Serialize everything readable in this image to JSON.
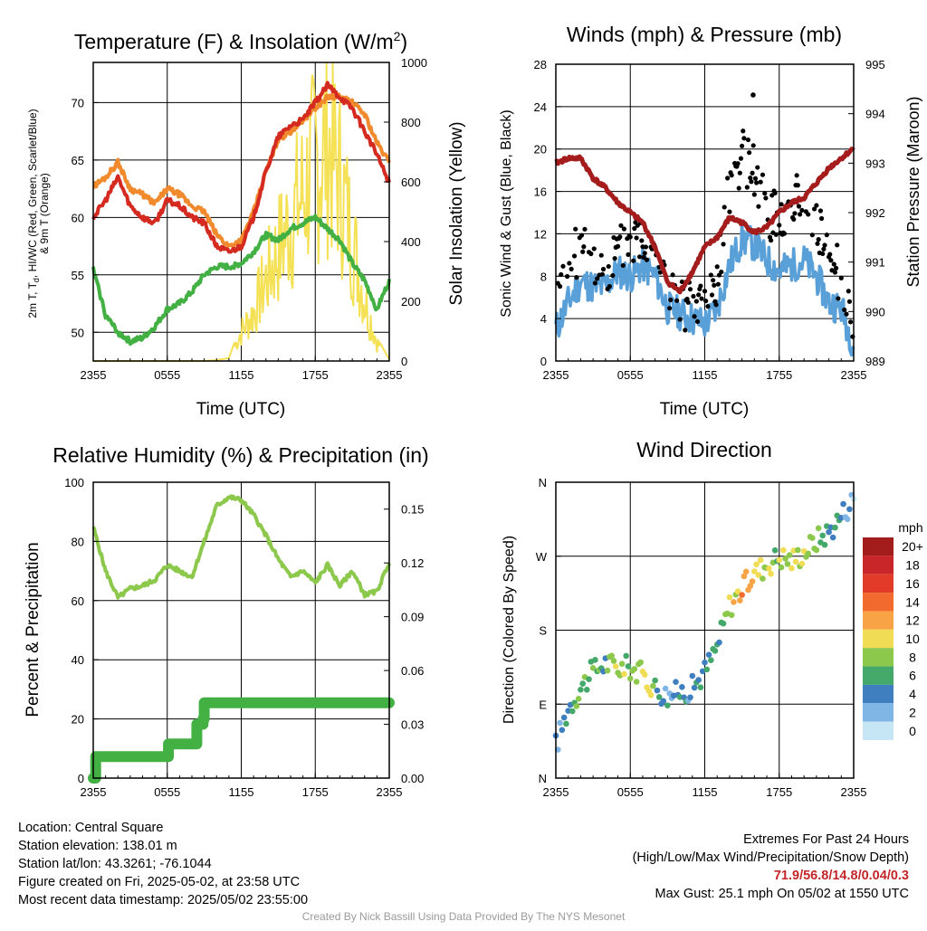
{
  "colors": {
    "temp_red": "#d42a20",
    "dewpoint_green": "#43b043",
    "index_scarlet": "#e8343a",
    "temp9m_orange": "#f08a2c",
    "insolation_yellow": "#f5e156",
    "wind_blue": "#5aa0d8",
    "gust_black": "#000000",
    "pressure_maroon": "#a41c1c",
    "rh_lightgreen": "#8cc84b",
    "precip_green": "#43b043",
    "grid": "#000000",
    "extremes_text": "#c3262a",
    "credit_text": "#9a9a9a"
  },
  "chart_data": [
    {
      "id": "temperature",
      "type": "line",
      "title": "Temperature (F) & Insolation (W/m",
      "title_sup": "2",
      "title_end": ")",
      "ylabel_line1": "2m T, T",
      "ylabel_sub": "d",
      "ylabel_line1_end": ", HI/WC (Red, Green, Scarlet/Blue)",
      "ylabel_line2": "& 9m T (Orange)",
      "y2label": "Solar Insolation (Yellow)",
      "xlabel": "Time (UTC)",
      "x_ticks": [
        "2355",
        "0555",
        "1155",
        "1755",
        "2355"
      ],
      "ylim": [
        47.5,
        73.5
      ],
      "y_ticks": [
        50,
        55,
        60,
        65,
        70
      ],
      "y2lim": [
        0,
        1000
      ],
      "y2_ticks": [
        0,
        200,
        400,
        600,
        800,
        1000
      ],
      "hours": [
        0,
        1,
        2,
        3,
        4,
        5,
        6,
        7,
        8,
        9,
        10,
        11,
        12,
        13,
        14,
        15,
        16,
        17,
        18,
        19,
        20,
        21,
        22,
        23,
        24
      ],
      "series": [
        {
          "key": "t9m",
          "values": [
            62.7,
            63.5,
            64.8,
            62.5,
            62.0,
            61.2,
            62.5,
            62.0,
            61.0,
            60.5,
            58.5,
            57.5,
            58.0,
            60.5,
            64.0,
            66.8,
            67.5,
            68.5,
            69.5,
            70.5,
            70.5,
            70.0,
            69.0,
            66.5,
            64.8
          ]
        },
        {
          "key": "t2m",
          "values": [
            60.0,
            61.5,
            63.5,
            61.0,
            60.0,
            59.5,
            61.5,
            61.0,
            60.0,
            59.5,
            57.5,
            57.0,
            57.5,
            60.0,
            64.0,
            67.0,
            68.0,
            68.5,
            70.0,
            71.5,
            70.5,
            69.5,
            67.5,
            65.5,
            63.0
          ]
        },
        {
          "key": "td",
          "values": [
            55.5,
            51.5,
            50.0,
            49.2,
            49.5,
            50.5,
            52.0,
            52.5,
            53.5,
            55.0,
            55.7,
            55.7,
            56.0,
            57.0,
            58.5,
            58.0,
            59.0,
            59.5,
            60.0,
            59.0,
            58.0,
            56.0,
            54.5,
            52.0,
            54.5
          ]
        },
        {
          "key": "insolation",
          "values": [
            0,
            0,
            0,
            0,
            0,
            0,
            0,
            0,
            0,
            0,
            3,
            10,
            125,
            210,
            350,
            480,
            600,
            720,
            850,
            950,
            780,
            520,
            270,
            80,
            5
          ]
        }
      ]
    },
    {
      "id": "winds",
      "type": "line",
      "title": "Winds (mph) & Pressure (mb)",
      "ylabel": "Sonic Wind & Gust (Blue, Black)",
      "y2label": "Station Pressure (Maroon)",
      "xlabel": "Time (UTC)",
      "x_ticks": [
        "2355",
        "0555",
        "1155",
        "1755",
        "2355"
      ],
      "ylim": [
        0,
        28
      ],
      "y_ticks": [
        0,
        4,
        8,
        12,
        16,
        20,
        24,
        28
      ],
      "y2lim": [
        989,
        995
      ],
      "y2_ticks": [
        989,
        990,
        991,
        992,
        993,
        994,
        995
      ],
      "hours": [
        0,
        1,
        2,
        3,
        4,
        5,
        6,
        7,
        8,
        9,
        10,
        11,
        12,
        13,
        14,
        15,
        16,
        17,
        18,
        19,
        20,
        21,
        22,
        23,
        24
      ],
      "series": [
        {
          "key": "wind",
          "values": [
            3.0,
            5.5,
            7.5,
            7.0,
            7.0,
            8.5,
            8.0,
            9.0,
            8.0,
            5.0,
            4.5,
            4.0,
            3.5,
            5.0,
            9.0,
            11.5,
            11.0,
            9.5,
            8.5,
            9.0,
            9.5,
            8.0,
            5.5,
            5.0,
            1.5
          ]
        },
        {
          "key": "gust",
          "values": [
            6.5,
            9.0,
            11.0,
            9.5,
            8.5,
            10.5,
            11.5,
            12.0,
            11.0,
            7.0,
            5.5,
            5.0,
            6.0,
            7.5,
            16.5,
            19.5,
            18.0,
            14.0,
            13.5,
            15.0,
            16.0,
            13.5,
            9.5,
            8.0,
            2.5
          ]
        },
        {
          "key": "pressure",
          "values": [
            993.0,
            993.1,
            993.1,
            992.7,
            992.5,
            992.2,
            992.0,
            991.8,
            991.3,
            990.6,
            990.4,
            990.8,
            991.3,
            991.5,
            991.9,
            991.8,
            991.6,
            991.7,
            992.0,
            992.2,
            992.3,
            992.6,
            992.9,
            993.1,
            993.3
          ]
        }
      ],
      "max_gust_point": {
        "hour": 15.9,
        "value": 25.1
      }
    },
    {
      "id": "humidity",
      "type": "line",
      "title": "Relative Humidity (%) & Precipitation (in)",
      "ylabel": "Percent & Precipitation",
      "x_ticks": [
        "2355",
        "0555",
        "1155",
        "1755",
        "2355"
      ],
      "ylim": [
        0,
        100
      ],
      "y_ticks": [
        0,
        20,
        40,
        60,
        80,
        100
      ],
      "y2lim": [
        0,
        0.165
      ],
      "y2_ticks": [
        "0.00",
        "0.03",
        "0.06",
        "0.09",
        "0.12",
        "0.15"
      ],
      "hours": [
        0,
        1,
        2,
        3,
        4,
        5,
        6,
        7,
        8,
        9,
        10,
        11,
        12,
        13,
        14,
        15,
        16,
        17,
        18,
        19,
        20,
        21,
        22,
        23,
        24
      ],
      "series": [
        {
          "key": "rh",
          "values": [
            85,
            70,
            61,
            64,
            65,
            67,
            72,
            70,
            68,
            80,
            92,
            95,
            94,
            89,
            82,
            74,
            68,
            70,
            66,
            72,
            65,
            70,
            62,
            63,
            73
          ]
        }
      ],
      "precip_steps": [
        [
          0,
          0.0
        ],
        [
          0.2,
          0.012
        ],
        [
          6.0,
          0.012
        ],
        [
          6.1,
          0.019
        ],
        [
          8.3,
          0.019
        ],
        [
          8.4,
          0.03
        ],
        [
          8.9,
          0.033
        ],
        [
          9.0,
          0.042
        ],
        [
          24,
          0.042
        ]
      ]
    },
    {
      "id": "direction",
      "type": "scatter",
      "title": "Wind Direction",
      "ylabel": "Direction (Colored By Speed)",
      "x_ticks": [
        "2355",
        "0555",
        "1155",
        "1755",
        "2355"
      ],
      "y_ticks": [
        "N",
        "E",
        "S",
        "W",
        "N"
      ],
      "ylim": [
        0,
        360
      ],
      "colorbar_unit": "mph",
      "colorbar_labels": [
        "20+",
        "18",
        "16",
        "14",
        "12",
        "10",
        "8",
        "6",
        "4",
        "2",
        "0"
      ],
      "colorbar_colors": [
        "#a31c1c",
        "#c9262a",
        "#e23b2a",
        "#f26a2d",
        "#f8a446",
        "#f0dc55",
        "#8cc84b",
        "#43a869",
        "#3f7fbf",
        "#7fb6e5",
        "#c6e6f5"
      ],
      "hours": [
        0,
        1,
        2,
        3,
        4,
        5,
        6,
        7,
        8,
        9,
        10,
        11,
        12,
        13,
        14,
        15,
        16,
        17,
        18,
        19,
        20,
        21,
        22,
        23,
        24
      ],
      "directions": [
        40,
        85,
        110,
        130,
        140,
        135,
        135,
        125,
        110,
        100,
        105,
        110,
        130,
        160,
        210,
        230,
        250,
        260,
        270,
        265,
        275,
        290,
        300,
        320,
        340
      ],
      "speeds": [
        3,
        5,
        7,
        7,
        6,
        8,
        7,
        9,
        7,
        4,
        4,
        4,
        4,
        5,
        9,
        12,
        11,
        9,
        8,
        9,
        9,
        8,
        5,
        5,
        2
      ]
    }
  ],
  "info": {
    "location": "Location: Central Square",
    "elevation": "Station elevation: 138.01 m",
    "latlon": "Station lat/lon: 43.3261; -76.1044",
    "created": "Figure created on Fri, 2025-05-02, at 23:58 UTC",
    "recent": "Most recent data timestamp: 2025/05/02 23:55:00"
  },
  "extremes": {
    "title": "Extremes For Past 24 Hours",
    "subtitle": "(High/Low/Max Wind/Precipitation/Snow Depth)",
    "values": "71.9/56.8/14.8/0.04/0.3",
    "max_gust": "Max Gust: 25.1 mph On 05/02 at 1550 UTC"
  },
  "credit": "Created By Nick Bassill Using Data Provided By The NYS Mesonet"
}
